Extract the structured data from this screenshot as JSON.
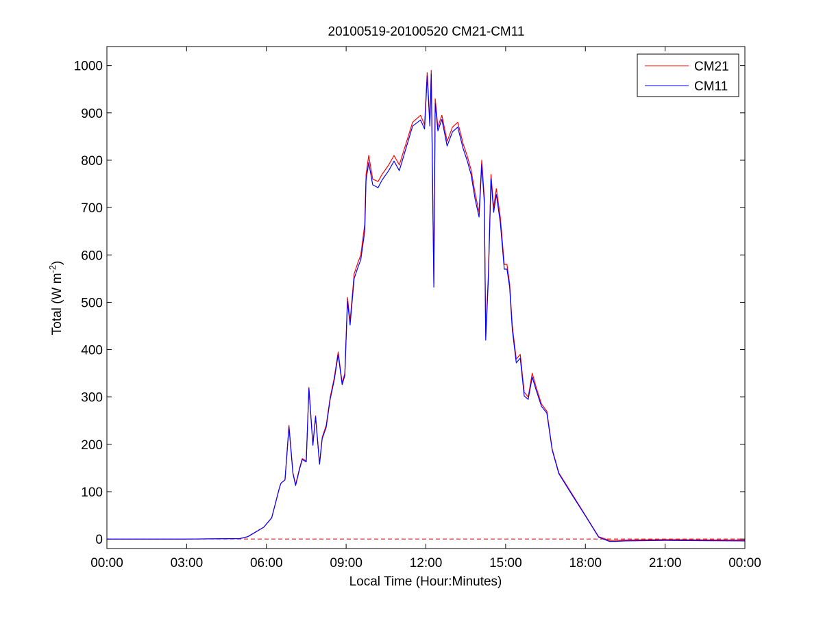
{
  "chart_data": {
    "type": "line",
    "title": "20100519-20100520 CM21-CM11",
    "xlabel": "Local Time (Hour:Minutes)",
    "ylabel": {
      "main": "Total (W m",
      "superscript": "-2",
      "close": ")"
    },
    "xlim": [
      0,
      24
    ],
    "ylim": [
      -20,
      1040
    ],
    "x_ticks": [
      {
        "value": 0,
        "label": "00:00"
      },
      {
        "value": 3,
        "label": "03:00"
      },
      {
        "value": 6,
        "label": "06:00"
      },
      {
        "value": 9,
        "label": "09:00"
      },
      {
        "value": 12,
        "label": "12:00"
      },
      {
        "value": 15,
        "label": "15:00"
      },
      {
        "value": 18,
        "label": "18:00"
      },
      {
        "value": 21,
        "label": "21:00"
      },
      {
        "value": 24,
        "label": "00:00"
      }
    ],
    "y_ticks": [
      {
        "value": 0,
        "label": "0"
      },
      {
        "value": 100,
        "label": "100"
      },
      {
        "value": 200,
        "label": "200"
      },
      {
        "value": 300,
        "label": "300"
      },
      {
        "value": 400,
        "label": "400"
      },
      {
        "value": 500,
        "label": "500"
      },
      {
        "value": 600,
        "label": "600"
      },
      {
        "value": 700,
        "label": "700"
      },
      {
        "value": 800,
        "label": "800"
      },
      {
        "value": 900,
        "label": "900"
      },
      {
        "value": 1000,
        "label": "1000"
      }
    ],
    "grid": false,
    "legend": {
      "position": "top-right"
    },
    "reference_line": {
      "y": 0,
      "style": "dashed",
      "color": "#cc0000"
    },
    "series": [
      {
        "name": "CM21",
        "color": "#ff0000",
        "x": [
          0,
          3,
          5.0,
          5.3,
          5.6,
          5.9,
          6.2,
          6.5,
          6.55,
          6.7,
          6.85,
          7.0,
          7.1,
          7.25,
          7.35,
          7.5,
          7.6,
          7.75,
          7.85,
          8.0,
          8.1,
          8.25,
          8.4,
          8.55,
          8.7,
          8.85,
          8.95,
          9.05,
          9.15,
          9.3,
          9.45,
          9.55,
          9.7,
          9.75,
          9.85,
          10.0,
          10.2,
          10.35,
          10.6,
          10.8,
          11.0,
          11.25,
          11.5,
          11.8,
          11.95,
          12.05,
          12.15,
          12.2,
          12.3,
          12.35,
          12.45,
          12.6,
          12.8,
          13.0,
          13.2,
          13.4,
          13.55,
          13.7,
          13.85,
          14.0,
          14.1,
          14.2,
          14.25,
          14.35,
          14.45,
          14.55,
          14.65,
          14.8,
          14.95,
          15.05,
          15.15,
          15.25,
          15.4,
          15.55,
          15.7,
          15.85,
          16.0,
          16.15,
          16.35,
          16.55,
          16.75,
          17.0,
          17.5,
          18.0,
          18.5,
          18.9,
          19.1,
          19.5,
          21.0,
          24.0
        ],
        "values": [
          0,
          0,
          1,
          5,
          15,
          25,
          45,
          110,
          118,
          125,
          240,
          140,
          115,
          150,
          170,
          165,
          320,
          200,
          260,
          160,
          215,
          240,
          300,
          340,
          395,
          330,
          350,
          510,
          460,
          560,
          585,
          600,
          665,
          770,
          810,
          760,
          755,
          770,
          790,
          810,
          790,
          835,
          880,
          895,
          875,
          985,
          880,
          990,
          540,
          930,
          870,
          895,
          840,
          870,
          880,
          835,
          810,
          780,
          730,
          690,
          800,
          720,
          430,
          560,
          770,
          700,
          740,
          680,
          580,
          580,
          540,
          450,
          380,
          390,
          310,
          300,
          350,
          320,
          285,
          270,
          190,
          140,
          95,
          50,
          5,
          -3,
          -3,
          -2,
          -1,
          -2
        ]
      },
      {
        "name": "CM11",
        "color": "#0000ff",
        "x": [
          0,
          3,
          5.0,
          5.3,
          5.6,
          5.9,
          6.2,
          6.5,
          6.55,
          6.7,
          6.85,
          7.0,
          7.1,
          7.25,
          7.35,
          7.5,
          7.6,
          7.75,
          7.85,
          8.0,
          8.1,
          8.25,
          8.4,
          8.55,
          8.7,
          8.85,
          8.95,
          9.05,
          9.15,
          9.3,
          9.45,
          9.55,
          9.7,
          9.75,
          9.85,
          10.0,
          10.2,
          10.35,
          10.6,
          10.8,
          11.0,
          11.25,
          11.5,
          11.8,
          11.95,
          12.05,
          12.15,
          12.2,
          12.3,
          12.35,
          12.45,
          12.6,
          12.8,
          13.0,
          13.2,
          13.4,
          13.55,
          13.7,
          13.85,
          14.0,
          14.1,
          14.2,
          14.25,
          14.35,
          14.45,
          14.55,
          14.65,
          14.8,
          14.95,
          15.05,
          15.15,
          15.25,
          15.4,
          15.55,
          15.7,
          15.85,
          16.0,
          16.15,
          16.35,
          16.55,
          16.75,
          17.0,
          17.5,
          18.0,
          18.5,
          18.9,
          19.1,
          19.5,
          21.0,
          24.0
        ],
        "values": [
          0,
          0,
          1,
          5,
          15,
          25,
          45,
          110,
          118,
          125,
          237,
          138,
          113,
          148,
          168,
          163,
          318,
          198,
          258,
          158,
          212,
          236,
          296,
          335,
          390,
          326,
          345,
          502,
          452,
          550,
          575,
          590,
          650,
          758,
          795,
          748,
          742,
          758,
          778,
          798,
          778,
          825,
          872,
          885,
          866,
          978,
          872,
          982,
          532,
          920,
          862,
          886,
          830,
          860,
          870,
          825,
          800,
          770,
          718,
          680,
          790,
          710,
          420,
          550,
          760,
          690,
          728,
          668,
          570,
          570,
          532,
          442,
          372,
          382,
          302,
          295,
          342,
          314,
          280,
          266,
          188,
          138,
          93,
          49,
          4,
          -5,
          -5,
          -4,
          -3,
          -4
        ]
      }
    ]
  }
}
